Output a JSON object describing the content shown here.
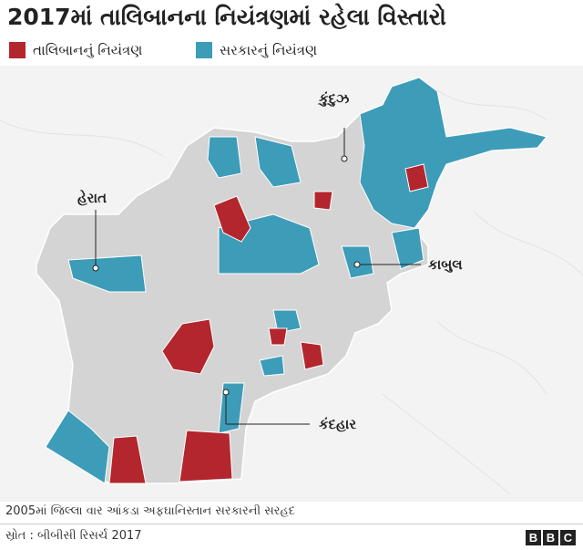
{
  "title": "2017માં તાલિબાનના નિયંત્રણમાં રહેલા વિસ્તારો",
  "legend": [
    {
      "name": "તાલિબાનનું નિયંત્રણ",
      "color": "#b3262d"
    },
    {
      "name": "સરકારનું નિયંત્રણ",
      "color": "#3d9cb8"
    }
  ],
  "cities": [
    "કુંદુઝ",
    "હેરાત",
    "કાબુલ",
    "કંદહાર"
  ],
  "footnote": "2005માં જિલ્લા વાર આંકડા અફઘાનિસ્તાન સરકારની સરહદ",
  "source": "સ્રોત : બીબીસી રિસર્ચ 2017",
  "logo": [
    "B",
    "B",
    "C"
  ]
}
